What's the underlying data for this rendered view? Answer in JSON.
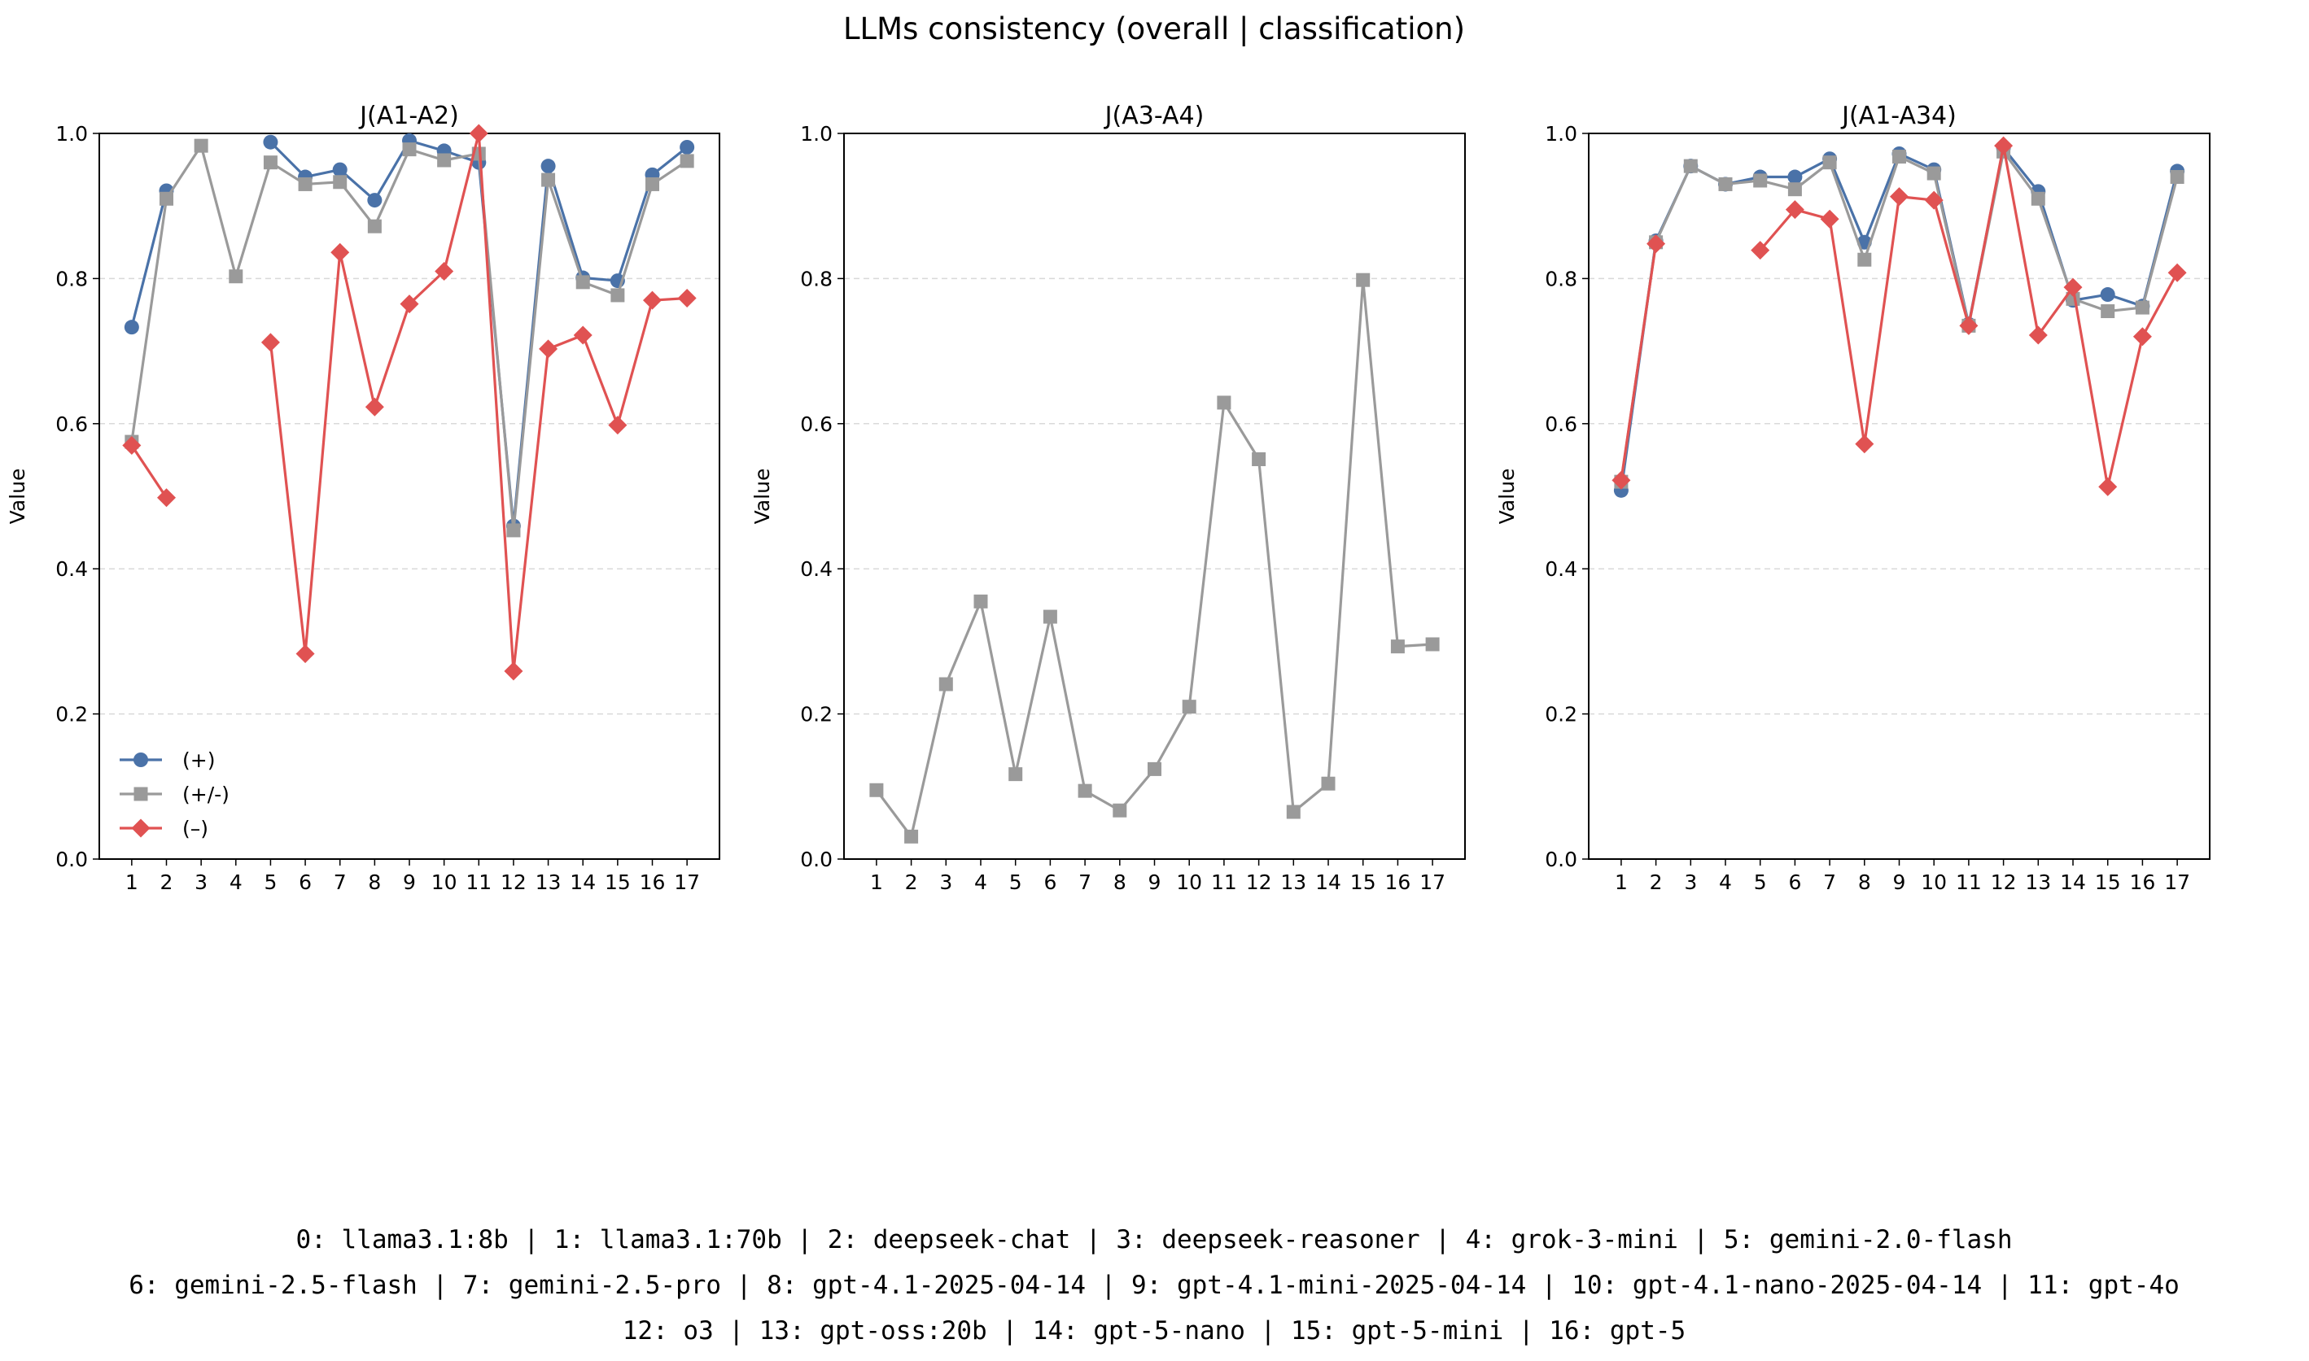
{
  "figure": {
    "suptitle": "LLMs consistency (overall | classification)",
    "footer_lines": [
      "0: llama3.1:8b |  1: llama3.1:70b |  2: deepseek-chat |  3: deepseek-reasoner |  4: grok-3-mini |  5: gemini-2.0-flash",
      "6: gemini-2.5-flash |  7: gemini-2.5-pro |  8: gpt-4.1-2025-04-14 |  9: gpt-4.1-mini-2025-04-14 | 10: gpt-4.1-nano-2025-04-14 | 11: gpt-4o",
      "12: o3 | 13: gpt-oss:20b | 14: gpt-5-nano | 15: gpt-5-mini | 16: gpt-5"
    ]
  },
  "colors": {
    "plus": "#4a72a8",
    "neutral": "#9a9a9a",
    "minus": "#e05252"
  },
  "chart_data": [
    {
      "type": "line",
      "title": "J(A1-A2)",
      "ylabel": "Value",
      "xlabel": "",
      "ylim": [
        0,
        1
      ],
      "yticks": [
        "0.0",
        "0.2",
        "0.4",
        "0.6",
        "0.8",
        "1.0"
      ],
      "grid": "horizontal dashed",
      "legend_position": "lower-left",
      "x": [
        1,
        2,
        3,
        4,
        5,
        6,
        7,
        8,
        9,
        10,
        11,
        12,
        13,
        14,
        15,
        16,
        17
      ],
      "series": [
        {
          "name": "(+)",
          "color": "plus",
          "marker": "circle",
          "values": [
            0.733,
            0.921,
            null,
            null,
            0.988,
            0.94,
            0.95,
            0.908,
            0.99,
            0.976,
            0.96,
            0.459,
            0.955,
            0.801,
            0.797,
            0.943,
            0.981
          ]
        },
        {
          "name": "(+/-)",
          "color": "neutral",
          "marker": "square",
          "values": [
            0.575,
            0.91,
            0.983,
            0.803,
            0.96,
            0.93,
            0.933,
            0.872,
            0.978,
            0.963,
            0.972,
            0.453,
            0.936,
            0.795,
            0.777,
            0.93,
            0.962
          ]
        },
        {
          "name": "(–)",
          "color": "minus",
          "marker": "diamond",
          "values": [
            0.57,
            0.498,
            null,
            null,
            0.712,
            0.283,
            0.836,
            0.623,
            0.765,
            0.81,
            1.0,
            0.259,
            0.703,
            0.722,
            0.598,
            0.77,
            0.773
          ]
        }
      ]
    },
    {
      "type": "line",
      "title": "J(A3-A4)",
      "ylabel": "Value",
      "xlabel": "",
      "ylim": [
        0,
        1
      ],
      "yticks": [
        "0.0",
        "0.2",
        "0.4",
        "0.6",
        "0.8",
        "1.0"
      ],
      "grid": "horizontal dashed",
      "x": [
        1,
        2,
        3,
        4,
        5,
        6,
        7,
        8,
        9,
        10,
        11,
        12,
        13,
        14,
        15,
        16,
        17
      ],
      "series": [
        {
          "color": "neutral",
          "marker": "square",
          "values": [
            0.095,
            0.031,
            0.241,
            0.355,
            0.117,
            0.334,
            0.094,
            0.067,
            0.124,
            0.21,
            0.629,
            0.551,
            0.065,
            0.104,
            0.798,
            0.293,
            0.296
          ]
        }
      ]
    },
    {
      "type": "line",
      "title": "J(A1-A34)",
      "ylabel": "Value",
      "xlabel": "",
      "ylim": [
        0,
        1
      ],
      "yticks": [
        "0.0",
        "0.2",
        "0.4",
        "0.6",
        "0.8",
        "1.0"
      ],
      "grid": "horizontal dashed",
      "x": [
        1,
        2,
        3,
        4,
        5,
        6,
        7,
        8,
        9,
        10,
        11,
        12,
        13,
        14,
        15,
        16,
        17
      ],
      "series": [
        {
          "name": "(+)",
          "color": "plus",
          "marker": "circle",
          "values": [
            0.508,
            0.852,
            0.955,
            0.93,
            0.94,
            0.94,
            0.965,
            0.85,
            0.972,
            0.95,
            0.737,
            0.98,
            0.92,
            0.77,
            0.778,
            0.762,
            0.948
          ]
        },
        {
          "name": "(+/-)",
          "color": "neutral",
          "marker": "square",
          "values": [
            0.52,
            0.85,
            0.955,
            0.93,
            0.935,
            0.923,
            0.96,
            0.826,
            0.968,
            0.945,
            0.735,
            0.975,
            0.91,
            0.772,
            0.755,
            0.76,
            0.94
          ]
        },
        {
          "name": "(–)",
          "color": "minus",
          "marker": "diamond",
          "values": [
            0.522,
            0.848,
            null,
            null,
            0.839,
            0.895,
            0.882,
            0.572,
            0.913,
            0.908,
            0.735,
            0.983,
            0.722,
            0.788,
            0.513,
            0.72,
            0.808
          ]
        }
      ]
    }
  ]
}
